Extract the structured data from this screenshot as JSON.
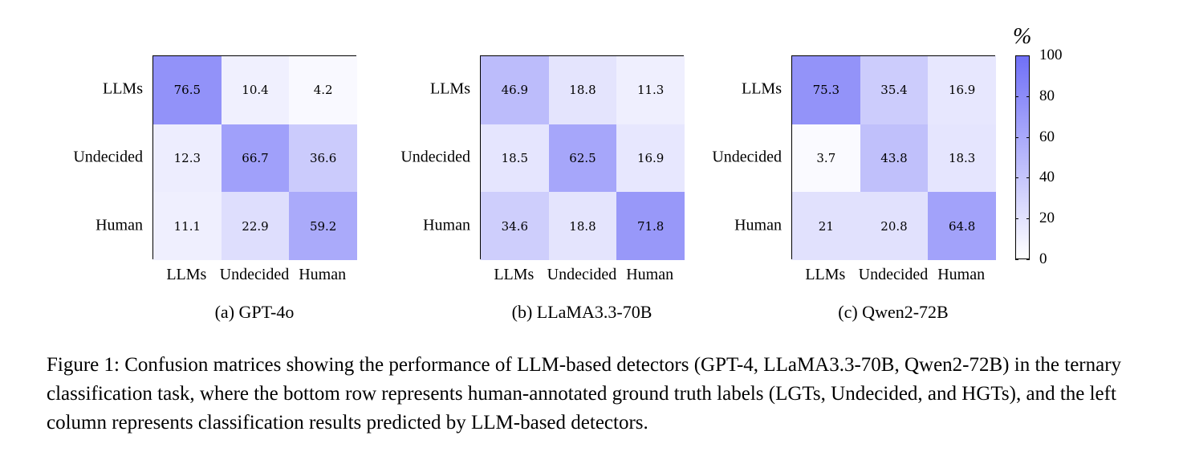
{
  "chart_data": [
    {
      "type": "heatmap",
      "caption": "(a) GPT-4o",
      "rows": [
        "LLMs",
        "Undecided",
        "Human"
      ],
      "columns": [
        "LLMs",
        "Undecided",
        "Human"
      ],
      "values": [
        [
          76.5,
          10.4,
          4.2
        ],
        [
          12.3,
          66.7,
          36.6
        ],
        [
          11.1,
          22.9,
          59.2
        ]
      ]
    },
    {
      "type": "heatmap",
      "caption": "(b) LLaMA3.3-70B",
      "rows": [
        "LLMs",
        "Undecided",
        "Human"
      ],
      "columns": [
        "LLMs",
        "Undecided",
        "Human"
      ],
      "values": [
        [
          46.9,
          18.8,
          11.3
        ],
        [
          18.5,
          62.5,
          16.9
        ],
        [
          34.6,
          18.8,
          71.8
        ]
      ]
    },
    {
      "type": "heatmap",
      "caption": "(c) Qwen2-72B",
      "rows": [
        "LLMs",
        "Undecided",
        "Human"
      ],
      "columns": [
        "LLMs",
        "Undecided",
        "Human"
      ],
      "values": [
        [
          75.3,
          35.4,
          16.9
        ],
        [
          3.7,
          43.8,
          18.3
        ],
        [
          21,
          20.8,
          64.8
        ]
      ]
    }
  ],
  "colorbar": {
    "unit": "%",
    "range": [
      0,
      100
    ],
    "ticks": [
      "100",
      "80",
      "60",
      "40",
      "20",
      "0"
    ],
    "color_min": "#ffffff",
    "color_max": "#7070f7"
  },
  "caption": "Figure 1: Confusion matrices showing the performance of LLM-based detectors (GPT-4, LLaMA3.3-70B, Qwen2-72B) in the ternary classification task, where the bottom row represents human-annotated ground truth labels (LGTs, Undecided, and HGTs), and the left column represents classification results predicted by LLM-based detectors."
}
